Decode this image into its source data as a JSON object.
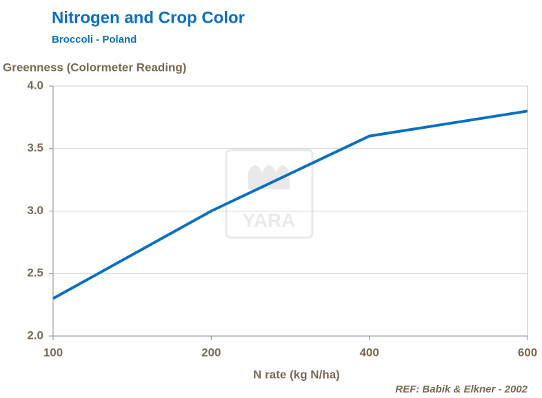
{
  "chart_data": {
    "type": "line",
    "title": "Nitrogen and Crop Color",
    "subtitle": "Broccoli  - Poland",
    "y_label": "Greenness (Colormeter Reading)",
    "x_label": "N rate (kg N/ha)",
    "note": "REF: Babik & Elkner - 2002",
    "watermark": "YARA",
    "categories": [
      "100",
      "200",
      "400",
      "600"
    ],
    "series": [
      {
        "name": "Greenness",
        "color": "#0a6fc0",
        "values": [
          2.3,
          3.0,
          3.6,
          3.8
        ]
      }
    ],
    "ylim": [
      2.0,
      4.0
    ],
    "yticks": [
      {
        "value": 2.0,
        "label": "2.0"
      },
      2.5,
      {
        "value": 3.0,
        "label": "3.0"
      },
      3.5,
      {
        "value": 4.0,
        "label": "4.0"
      }
    ],
    "grid": true
  }
}
